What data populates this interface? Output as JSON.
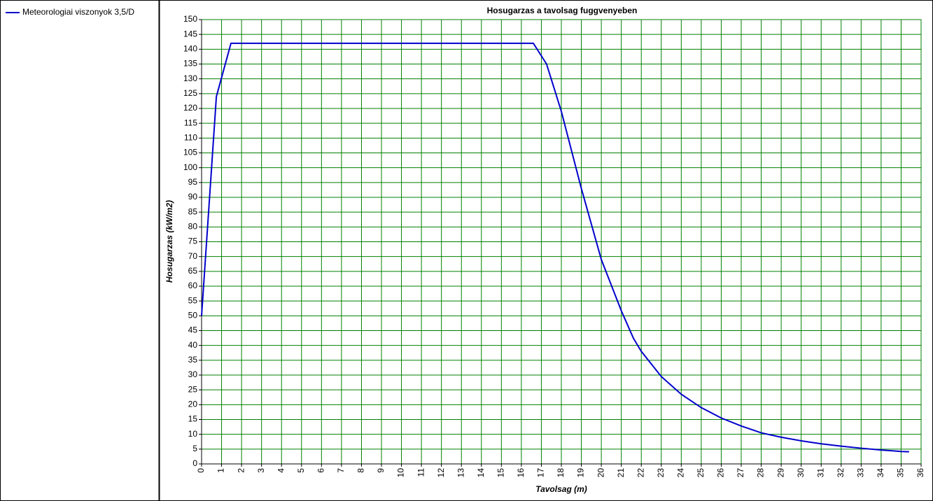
{
  "chart_data": {
    "type": "line",
    "title": "Hosugarzas a tavolsag fuggvenyeben",
    "x_label": "Tavolsag (m)",
    "y_label": "Hosugarzas (kW/m2)",
    "legend_position": "left",
    "grid": true,
    "grid_color": "#008000",
    "x": [
      0,
      0.74,
      1.47,
      16.6,
      17.26,
      18,
      19,
      19.5,
      20,
      21,
      21.6,
      22,
      23,
      24,
      25,
      26,
      27,
      28,
      29,
      30,
      31,
      32,
      33,
      34,
      35,
      35.4
    ],
    "series": [
      {
        "name": "Meteorologiai viszonyok 3,5/D",
        "color": "#0000cc",
        "values": [
          50,
          124,
          142,
          142,
          135,
          119,
          93,
          81,
          69,
          51.7,
          42.5,
          38,
          29.5,
          23.5,
          19,
          15.5,
          12.8,
          10.5,
          9,
          7.8,
          6.8,
          6,
          5.3,
          4.7,
          4.2,
          4.1
        ]
      }
    ],
    "xlim": [
      0,
      36
    ],
    "xticks": [
      0,
      1,
      2,
      3,
      4,
      5,
      6,
      7,
      8,
      9,
      10,
      11,
      12,
      13,
      14,
      15,
      16,
      17,
      18,
      19,
      20,
      21,
      22,
      23,
      24,
      25,
      26,
      27,
      28,
      29,
      30,
      31,
      32,
      33,
      34,
      35,
      36
    ],
    "ylim": [
      0,
      150
    ],
    "yticks": [
      0,
      5,
      10,
      15,
      20,
      25,
      30,
      35,
      40,
      45,
      50,
      55,
      60,
      65,
      70,
      75,
      80,
      85,
      90,
      95,
      100,
      105,
      110,
      115,
      120,
      125,
      130,
      135,
      140,
      145,
      150
    ]
  }
}
